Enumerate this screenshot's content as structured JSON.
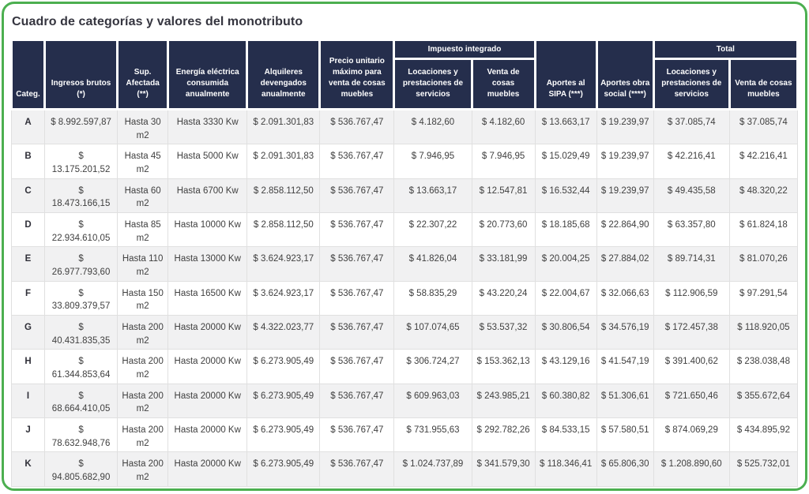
{
  "page": {
    "title": "Cuadro de categorías y valores del monotributo"
  },
  "colors": {
    "header_navy": "#252e4c",
    "border_green": "#4caf50",
    "row_alt_gray": "#f1f1f2",
    "body_text": "#404040"
  },
  "table": {
    "headers": {
      "categ": "Categ.",
      "ingresos": "Ingresos brutos (*)",
      "sup": "Sup. Afectada (**)",
      "energia": "Energía eléctrica consumida anualmente",
      "alquileres": "Alquileres devengados anualmente",
      "precio": "Precio unitario máximo para venta de cosas muebles",
      "impuesto_group": "Impuesto integrado",
      "impuesto_servicios": "Locaciones y prestaciones de servicios",
      "impuesto_muebles": "Venta de cosas muebles",
      "sipa": "Aportes al SIPA (***)",
      "obra_social": "Aportes obra social (****)",
      "total_group": "Total",
      "total_servicios": "Locaciones y prestaciones de servicios",
      "total_muebles": "Venta de cosas muebles"
    },
    "rows": [
      [
        "A",
        "$ 8.992.597,87",
        "Hasta 30 m2",
        "Hasta 3330 Kw",
        "$ 2.091.301,83",
        "$ 536.767,47",
        "$ 4.182,60",
        "$ 4.182,60",
        "$ 13.663,17",
        "$ 19.239,97",
        "$ 37.085,74",
        "$ 37.085,74"
      ],
      [
        "B",
        "$ 13.175.201,52",
        "Hasta 45 m2",
        "Hasta 5000 Kw",
        "$ 2.091.301,83",
        "$ 536.767,47",
        "$ 7.946,95",
        "$ 7.946,95",
        "$ 15.029,49",
        "$ 19.239,97",
        "$ 42.216,41",
        "$ 42.216,41"
      ],
      [
        "C",
        "$ 18.473.166,15",
        "Hasta 60 m2",
        "Hasta 6700 Kw",
        "$ 2.858.112,50",
        "$ 536.767,47",
        "$ 13.663,17",
        "$ 12.547,81",
        "$ 16.532,44",
        "$ 19.239,97",
        "$ 49.435,58",
        "$ 48.320,22"
      ],
      [
        "D",
        "$ 22.934.610,05",
        "Hasta 85 m2",
        "Hasta 10000 Kw",
        "$ 2.858.112,50",
        "$ 536.767,47",
        "$ 22.307,22",
        "$ 20.773,60",
        "$ 18.185,68",
        "$ 22.864,90",
        "$ 63.357,80",
        "$ 61.824,18"
      ],
      [
        "E",
        "$ 26.977.793,60",
        "Hasta 110 m2",
        "Hasta 13000 Kw",
        "$ 3.624.923,17",
        "$ 536.767,47",
        "$ 41.826,04",
        "$ 33.181,99",
        "$ 20.004,25",
        "$ 27.884,02",
        "$ 89.714,31",
        "$ 81.070,26"
      ],
      [
        "F",
        "$ 33.809.379,57",
        "Hasta 150 m2",
        "Hasta 16500 Kw",
        "$ 3.624.923,17",
        "$ 536.767,47",
        "$ 58.835,29",
        "$ 43.220,24",
        "$ 22.004,67",
        "$ 32.066,63",
        "$ 112.906,59",
        "$ 97.291,54"
      ],
      [
        "G",
        "$ 40.431.835,35",
        "Hasta 200 m2",
        "Hasta 20000 Kw",
        "$ 4.322.023,77",
        "$ 536.767,47",
        "$ 107.074,65",
        "$ 53.537,32",
        "$ 30.806,54",
        "$ 34.576,19",
        "$ 172.457,38",
        "$ 118.920,05"
      ],
      [
        "H",
        "$ 61.344.853,64",
        "Hasta 200 m2",
        "Hasta 20000 Kw",
        "$ 6.273.905,49",
        "$ 536.767,47",
        "$ 306.724,27",
        "$ 153.362,13",
        "$ 43.129,16",
        "$ 41.547,19",
        "$ 391.400,62",
        "$ 238.038,48"
      ],
      [
        "I",
        "$ 68.664.410,05",
        "Hasta 200 m2",
        "Hasta 20000 Kw",
        "$ 6.273.905,49",
        "$ 536.767,47",
        "$ 609.963,03",
        "$ 243.985,21",
        "$ 60.380,82",
        "$ 51.306,61",
        "$ 721.650,46",
        "$ 355.672,64"
      ],
      [
        "J",
        "$ 78.632.948,76",
        "Hasta 200 m2",
        "Hasta 20000 Kw",
        "$ 6.273.905,49",
        "$ 536.767,47",
        "$ 731.955,63",
        "$ 292.782,26",
        "$ 84.533,15",
        "$ 57.580,51",
        "$ 874.069,29",
        "$ 434.895,92"
      ],
      [
        "K",
        "$ 94.805.682,90",
        "Hasta 200 m2",
        "Hasta 20000 Kw",
        "$ 6.273.905,49",
        "$ 536.767,47",
        "$ 1.024.737,89",
        "$ 341.579,30",
        "$ 118.346,41",
        "$ 65.806,30",
        "$ 1.208.890,60",
        "$ 525.732,01"
      ]
    ]
  }
}
